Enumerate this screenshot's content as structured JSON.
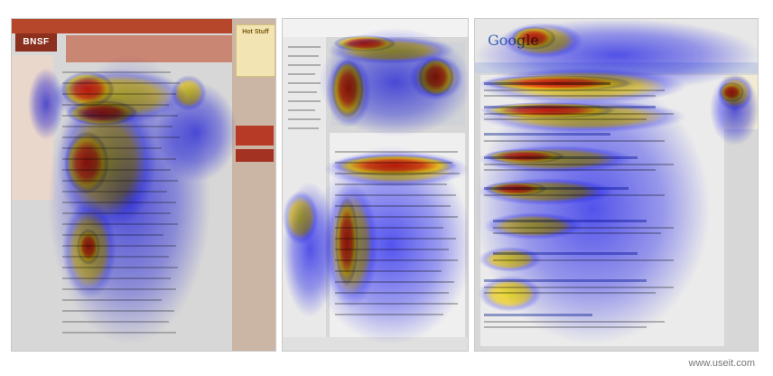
{
  "panels": {
    "corporate": {
      "logo_text": "BNSF",
      "hotbox_text": "Hot Stuff"
    },
    "product": {},
    "search": {
      "logo_text": "Google"
    }
  },
  "attribution": "www.useit.com",
  "colors": {
    "heat_low": "#5a5aff",
    "heat_mid": "#ffe52a",
    "heat_high": "#e81428",
    "page_gray": "#d7d7d7"
  }
}
